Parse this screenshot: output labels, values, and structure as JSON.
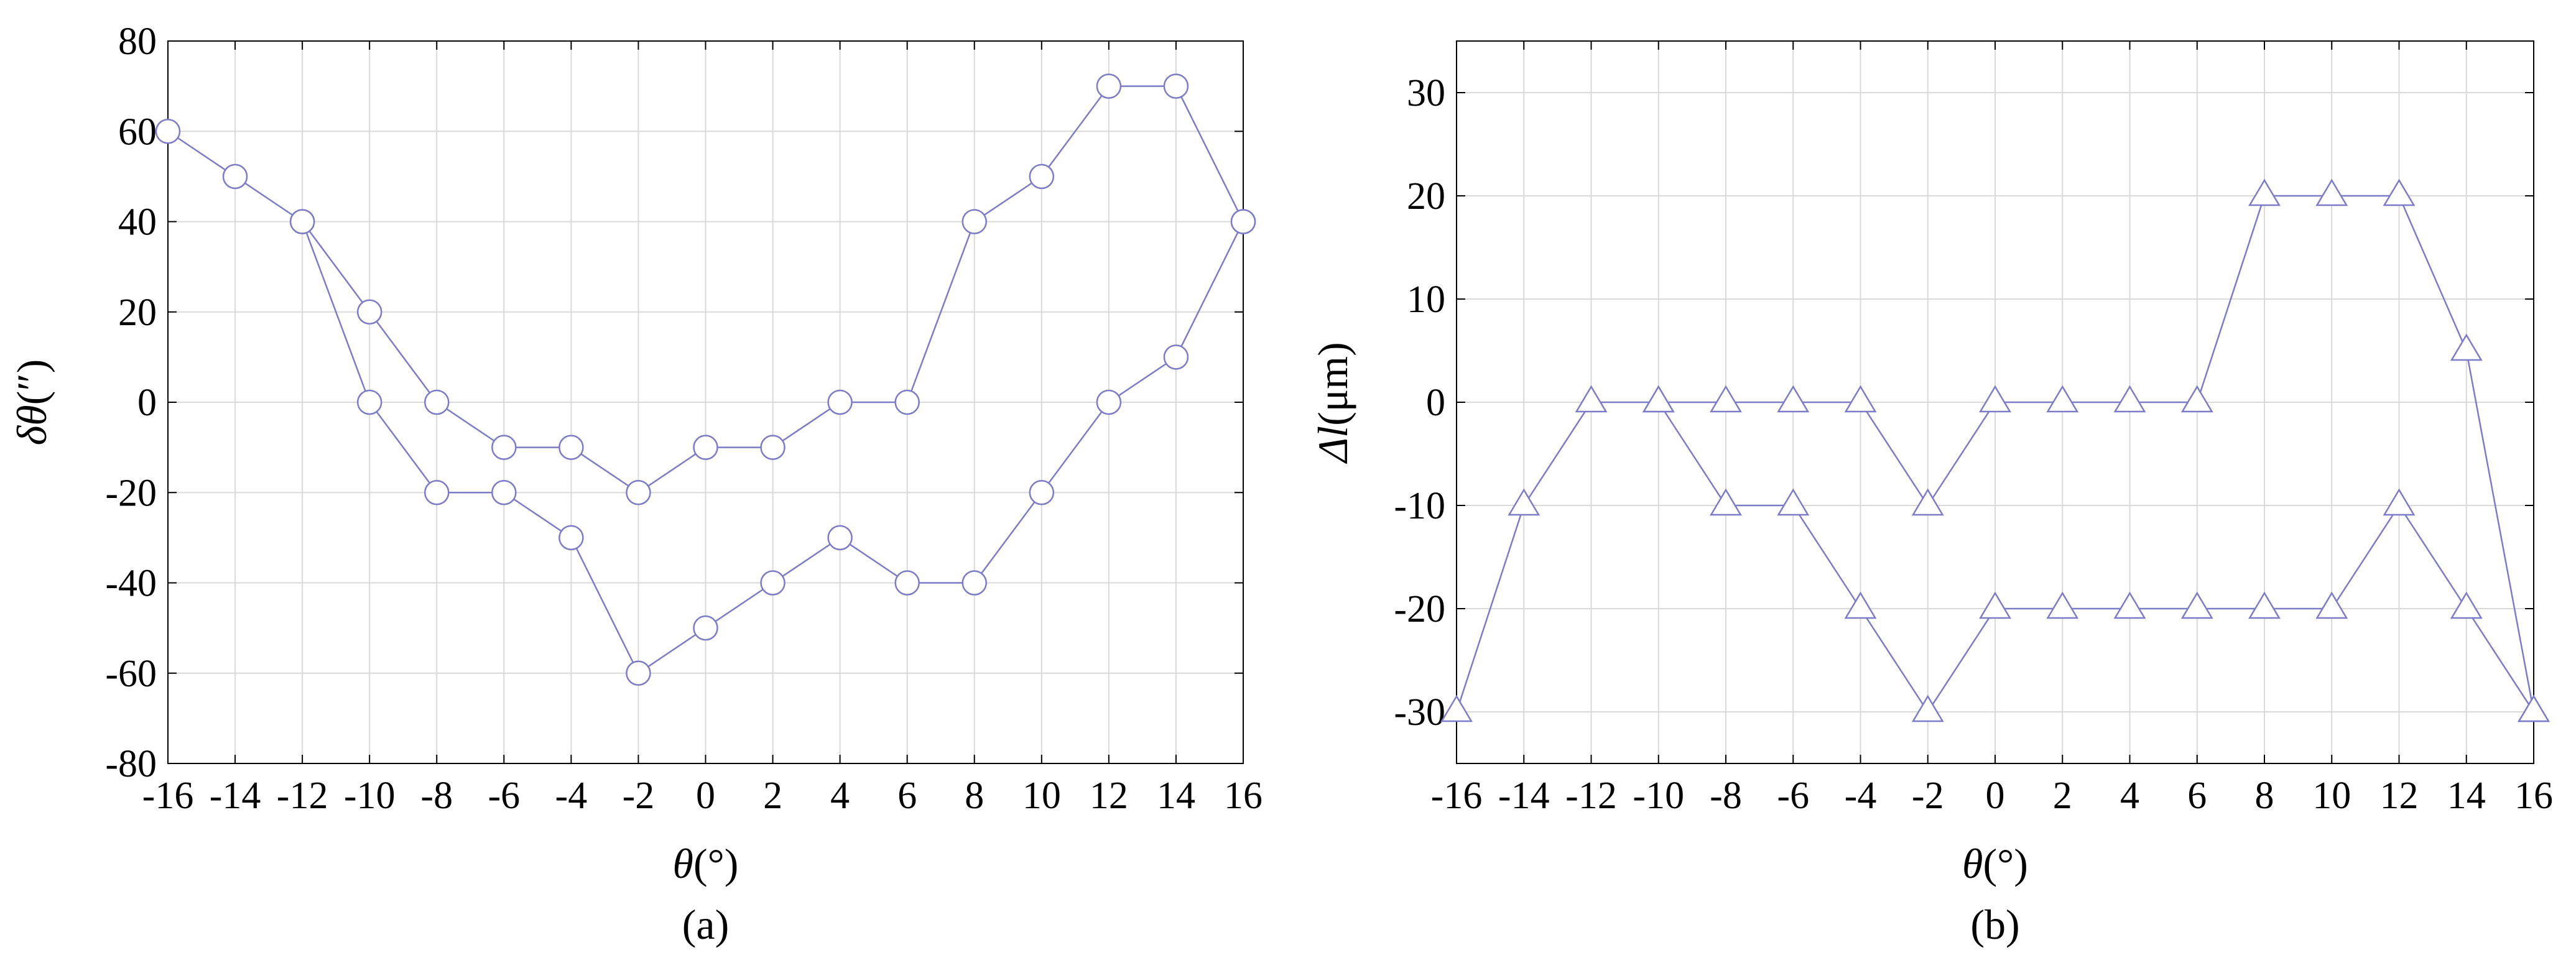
{
  "chart_data": [
    {
      "id": "a",
      "type": "line",
      "caption": "(a)",
      "xlabel": "θ(°)",
      "xlabel_var": "θ",
      "xlabel_unit": "(°)",
      "ylabel": "δθ(″)",
      "ylabel_var": "δθ",
      "ylabel_unit": "(″)",
      "xlim": [
        -16,
        16
      ],
      "ylim": [
        -80,
        80
      ],
      "xticks": [
        -16,
        -14,
        -12,
        -10,
        -8,
        -6,
        -4,
        -2,
        0,
        2,
        4,
        6,
        8,
        10,
        12,
        14,
        16
      ],
      "yticks": [
        -80,
        -60,
        -40,
        -20,
        0,
        20,
        40,
        60,
        80
      ],
      "grid": true,
      "marker": "circle",
      "color": "#7b7bc8",
      "series": [
        {
          "x": [
            -16,
            -14,
            -12,
            -10,
            -8,
            -6,
            -4,
            -2,
            0,
            2,
            4,
            6,
            8,
            10,
            12,
            14,
            16
          ],
          "y": [
            60,
            50,
            40,
            20,
            0,
            -10,
            -10,
            -20,
            -10,
            -10,
            0,
            0,
            40,
            50,
            70,
            70,
            40
          ]
        },
        {
          "x": [
            -12,
            -10,
            -8,
            -6,
            -4,
            -2,
            0,
            2,
            4,
            6,
            8,
            10,
            12,
            14,
            16
          ],
          "y": [
            40,
            0,
            -20,
            -20,
            -30,
            -60,
            -50,
            -40,
            -30,
            -40,
            -40,
            -20,
            0,
            10,
            40
          ]
        }
      ]
    },
    {
      "id": "b",
      "type": "line",
      "caption": "(b)",
      "xlabel": "θ(°)",
      "xlabel_var": "θ",
      "xlabel_unit": "(°)",
      "ylabel": "Δl(μm)",
      "ylabel_var": "Δl",
      "ylabel_unit": "(μm)",
      "xlim": [
        -16,
        16
      ],
      "ylim": [
        -35,
        35
      ],
      "xticks": [
        -16,
        -14,
        -12,
        -10,
        -8,
        -6,
        -4,
        -2,
        0,
        2,
        4,
        6,
        8,
        10,
        12,
        14,
        16
      ],
      "yticks": [
        -30,
        -20,
        -10,
        0,
        10,
        20,
        30
      ],
      "grid": true,
      "marker": "triangle",
      "color": "#7b7bc8",
      "series": [
        {
          "x": [
            -16,
            -14,
            -12,
            -10,
            -8,
            -6,
            -4,
            -2,
            0,
            2,
            4,
            6,
            8,
            10,
            12,
            14,
            16
          ],
          "y": [
            -30,
            -10,
            0,
            0,
            0,
            0,
            0,
            -10,
            0,
            0,
            0,
            0,
            20,
            20,
            20,
            5,
            -30
          ]
        },
        {
          "x": [
            -10,
            -8,
            -6,
            -4,
            -2,
            0,
            2,
            4,
            6,
            8,
            10,
            12,
            14,
            16
          ],
          "y": [
            0,
            -10,
            -10,
            -20,
            -30,
            -20,
            -20,
            -20,
            -20,
            -20,
            -20,
            -10,
            -20,
            -30
          ]
        }
      ]
    }
  ]
}
